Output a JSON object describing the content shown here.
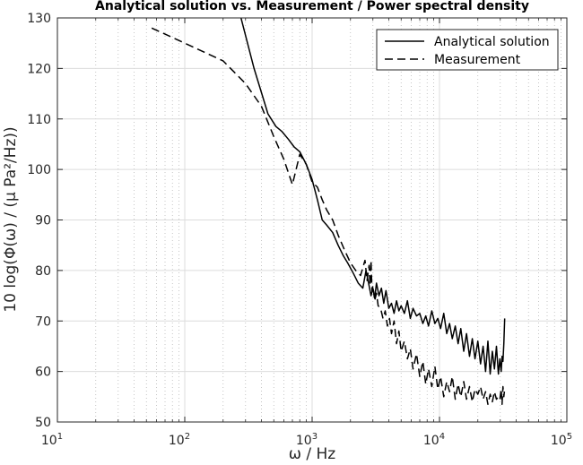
{
  "chart_data": {
    "type": "line",
    "title": "Analytical solution vs. Measurement / Power spectral density",
    "xlabel": "ω / Hz",
    "ylabel": "10 log(Φ(ω) / (μ Pa²/Hz))",
    "xscale": "log",
    "xlim": [
      10,
      100000
    ],
    "ylim": [
      50,
      130
    ],
    "xticks": [
      {
        "base": "10",
        "exp": "1"
      },
      {
        "base": "10",
        "exp": "2"
      },
      {
        "base": "10",
        "exp": "3"
      },
      {
        "base": "10",
        "exp": "4"
      },
      {
        "base": "10",
        "exp": "5"
      }
    ],
    "yticks": [
      "50",
      "60",
      "70",
      "80",
      "90",
      "100",
      "110",
      "120",
      "130"
    ],
    "grid": true,
    "legend_position": "top-right",
    "series": [
      {
        "name": "Analytical solution",
        "style": "solid",
        "color": "#000000",
        "x": [
          270,
          350,
          450,
          520,
          580,
          650,
          720,
          800,
          900,
          1000,
          1100,
          1200,
          1300,
          1450,
          1600,
          1750,
          1900,
          2100,
          2300,
          2500,
          2650,
          2800,
          2900,
          3000,
          3100,
          3200,
          3350,
          3500,
          3650,
          3800,
          4000,
          4200,
          4400,
          4600,
          4800,
          5000,
          5300,
          5600,
          5900,
          6200,
          6600,
          7000,
          7400,
          7800,
          8200,
          8700,
          9200,
          9700,
          10200,
          10800,
          11400,
          12000,
          12600,
          13300,
          14000,
          14700,
          15500,
          16300,
          17200,
          18100,
          19000,
          20000,
          21000,
          22000,
          23000,
          24000,
          25000,
          26000,
          27000,
          28000,
          29000,
          29800,
          30500,
          31000,
          31500,
          32000,
          32500
        ],
        "y": [
          131,
          120,
          111,
          108.5,
          107.5,
          106,
          104.5,
          103.5,
          101,
          98,
          94,
          90,
          89,
          87.5,
          85,
          83,
          81.5,
          79.5,
          77.5,
          76.5,
          80,
          77,
          75,
          76.5,
          74.5,
          77.5,
          75,
          76.5,
          73.5,
          76,
          72.5,
          73.5,
          71.5,
          74,
          72,
          73,
          71.5,
          74,
          70.5,
          72.5,
          71,
          71.5,
          69.5,
          71,
          69,
          72,
          69.5,
          70.5,
          68.5,
          71.5,
          67.5,
          69.5,
          66.5,
          69,
          65.5,
          68.5,
          64,
          67.5,
          63,
          66.5,
          62.5,
          66,
          61.5,
          65,
          60,
          66,
          59.5,
          64,
          60.5,
          65,
          59.5,
          62.5,
          60,
          63,
          62,
          65.5,
          70.5
        ]
      },
      {
        "name": "Measurement",
        "style": "dashed",
        "color": "#000000",
        "x": [
          55,
          100,
          200,
          300,
          400,
          500,
          600,
          700,
          800,
          900,
          1000,
          1100,
          1200,
          1300,
          1450,
          1600,
          1800,
          2000,
          2200,
          2400,
          2600,
          2700,
          2800,
          2850,
          2900,
          2950,
          3000,
          3100,
          3200,
          3300,
          3450,
          3600,
          3750,
          3900,
          4050,
          4200,
          4400,
          4600,
          4800,
          5000,
          5300,
          5600,
          5900,
          6200,
          6600,
          7000,
          7400,
          7800,
          8200,
          8700,
          9200,
          9700,
          10200,
          10800,
          11400,
          12000,
          12600,
          13300,
          14000,
          14700,
          15500,
          16300,
          17200,
          18100,
          19000,
          20000,
          21000,
          22000,
          23000,
          24000,
          25000,
          26000,
          27000,
          28000,
          29000,
          29800,
          30500,
          31000,
          31500,
          32000,
          32500
        ],
        "y": [
          128,
          125,
          121.5,
          117,
          112.5,
          106.5,
          102,
          97,
          103,
          101,
          97.5,
          96.5,
          94,
          92,
          90,
          87,
          84,
          81.5,
          80,
          79,
          82,
          78,
          81,
          77,
          82,
          76,
          77,
          74,
          75.5,
          73,
          72.5,
          70.5,
          72,
          69,
          70.5,
          67.5,
          70,
          65.5,
          68,
          64,
          66,
          62.5,
          64.5,
          60.5,
          63.5,
          59,
          62,
          57.5,
          60.5,
          57,
          61,
          56.5,
          59,
          55,
          58,
          56,
          59,
          54.5,
          57.5,
          55,
          58,
          54.5,
          57,
          54,
          56.5,
          55.5,
          57,
          54.5,
          56,
          53.5,
          55.5,
          54,
          56,
          54.5,
          55,
          54.5,
          56.5,
          53.5,
          57,
          55,
          56.5
        ]
      }
    ]
  }
}
